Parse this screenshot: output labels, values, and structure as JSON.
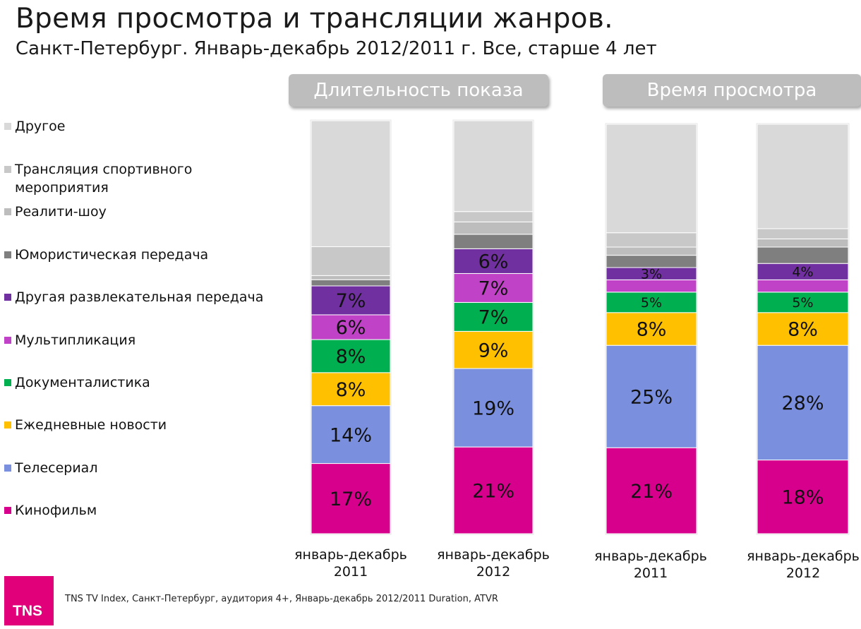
{
  "title": "Время просмотра и трансляции жанров.",
  "subtitle": "Санкт-Петербург. Январь-декабрь 2012/2011 г. Все, старше 4 лет",
  "groups": [
    {
      "label": "Длительность показа"
    },
    {
      "label": "Время просмотра"
    }
  ],
  "legend": [
    {
      "label": "Другое",
      "color": "#d9d9d9"
    },
    {
      "label": "Трансляция спортивного мероприятия",
      "color": "#c8c8c8"
    },
    {
      "label": "Реалити-шоу",
      "color": "#bdbdbd"
    },
    {
      "label": "Юмористическая передача",
      "color": "#7f7f7f"
    },
    {
      "label": "Другая развлекательная передача",
      "color": "#7030a0"
    },
    {
      "label": "Мультипликация",
      "color": "#c042c6"
    },
    {
      "label": "Документалистика",
      "color": "#00b050"
    },
    {
      "label": "Ежедневные новости",
      "color": "#ffc000"
    },
    {
      "label": "Телесериал",
      "color": "#7b8fdf"
    },
    {
      "label": "Кинофильм",
      "color": "#d6008c"
    }
  ],
  "footer": {
    "source": "TNS TV Index, Санкт-Петербург, аудитория 4+, Январь-декабрь 2012/2011 Duration, ATVR",
    "logo": "TNS"
  },
  "chart_data": {
    "type": "bar",
    "stacked": true,
    "percent": true,
    "categories": [
      {
        "line1": "январь-декабрь",
        "line2": "2011"
      },
      {
        "line1": "январь-декабрь",
        "line2": "2012"
      },
      {
        "line1": "январь-декабрь",
        "line2": "2011"
      },
      {
        "line1": "январь-декабрь",
        "line2": "2012"
      }
    ],
    "series": [
      {
        "name": "Кинофильм",
        "color": "#d6008c",
        "values": [
          17,
          21,
          21,
          18
        ],
        "labels": [
          "17%",
          "21%",
          "21%",
          "18%"
        ]
      },
      {
        "name": "Телесериал",
        "color": "#7b8fdf",
        "values": [
          14,
          19,
          25,
          28
        ],
        "labels": [
          "14%",
          "19%",
          "25%",
          "28%"
        ]
      },
      {
        "name": "Ежедневные новости",
        "color": "#ffc000",
        "values": [
          8,
          9,
          8,
          8
        ],
        "labels": [
          "8%",
          "9%",
          "8%",
          "8%"
        ]
      },
      {
        "name": "Документалистика",
        "color": "#00b050",
        "values": [
          8,
          7,
          5,
          5
        ],
        "labels": [
          "8%",
          "7%",
          "5%",
          "5%"
        ]
      },
      {
        "name": "Мультипликация",
        "color": "#c042c6",
        "values": [
          6,
          7,
          3,
          3
        ],
        "labels": [
          "6%",
          "7%",
          "",
          ""
        ]
      },
      {
        "name": "Другая развлекательная передача",
        "color": "#7030a0",
        "values": [
          7,
          6,
          3,
          4
        ],
        "labels": [
          "7%",
          "6%",
          "3%",
          "4%"
        ]
      },
      {
        "name": "Юмористическая передача",
        "color": "#7f7f7f",
        "values": [
          1.5,
          3.5,
          3,
          4
        ],
        "labels": [
          "",
          "",
          "",
          ""
        ]
      },
      {
        "name": "Реалити-шоу",
        "color": "#bdbdbd",
        "values": [
          1,
          3,
          2,
          2
        ],
        "labels": [
          "",
          "",
          "",
          ""
        ]
      },
      {
        "name": "Трансляция спортивного мероприятия",
        "color": "#c8c8c8",
        "values": [
          7,
          2.5,
          3.5,
          2.5
        ],
        "labels": [
          "",
          "",
          "",
          ""
        ]
      },
      {
        "name": "Другое",
        "color": "#d9d9d9",
        "values": [
          30.5,
          22,
          26.5,
          25.5
        ],
        "labels": [
          "",
          "",
          "",
          ""
        ]
      }
    ],
    "ylim": [
      0,
      100
    ]
  }
}
